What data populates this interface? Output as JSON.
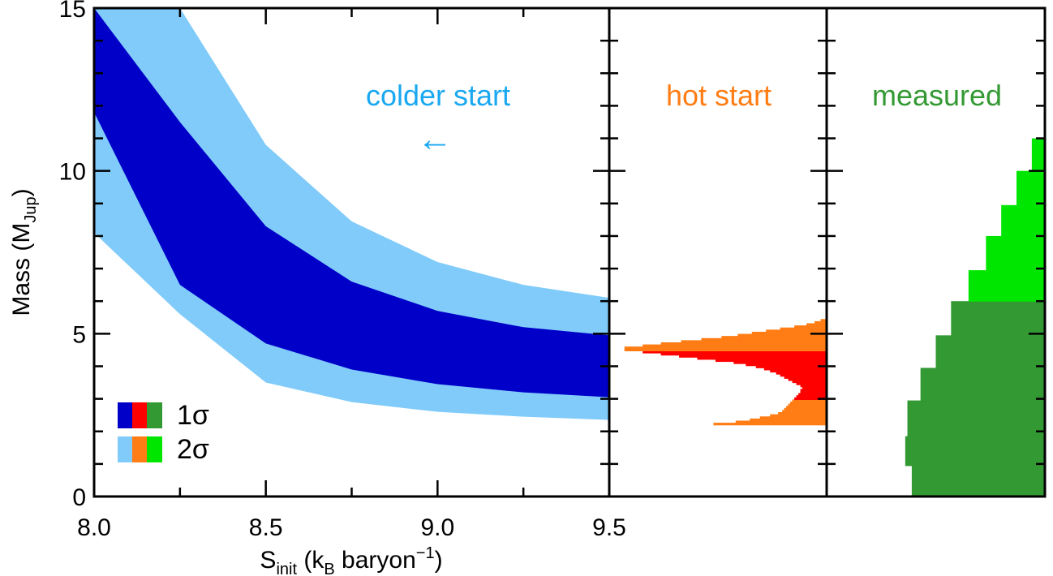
{
  "colors": {
    "s1_dark": "#0000c8",
    "s1_light": "#80cbfa",
    "hot_dark": "#ff0000",
    "hot_light": "#ff7d14",
    "meas_dark": "#339933",
    "meas_light": "#00e600",
    "annot_cold": "#1aa8f0",
    "annot_hot": "#ff7d14",
    "annot_meas": "#339933"
  },
  "chart_data": {
    "type": "area",
    "ylabel_main": "Mass (M",
    "ylabel_sub": "Jup",
    "ylabel_close": ")",
    "xlabel_main": "S",
    "xlabel_sub": "init",
    "xlabel_mid": " (k",
    "xlabel_sub2": "B",
    "xlabel_tail": " baryon",
    "xlabel_sup": "−1",
    "xlabel_close": ")",
    "ylim": [
      0,
      15
    ],
    "xlim": [
      8.0,
      9.5
    ],
    "yticks": [
      0,
      5,
      10,
      15
    ],
    "xticks": [
      {
        "value": 8.0,
        "label": "8.0"
      },
      {
        "value": 8.5,
        "label": "8.5"
      },
      {
        "value": 9.0,
        "label": "9.0"
      },
      {
        "value": 9.5,
        "label": "9.5"
      }
    ],
    "annotations": {
      "cold": "colder start",
      "hot": "hot start",
      "measured": "measured",
      "arrow": "←"
    },
    "legend": {
      "sigma1": "1σ",
      "sigma2": "2σ",
      "placement": "bottom-left"
    },
    "cold_start": {
      "x": [
        8.0,
        8.25,
        8.5,
        8.75,
        9.0,
        9.25,
        9.5
      ],
      "two_sigma_low": [
        8.1,
        5.6,
        3.5,
        2.9,
        2.6,
        2.45,
        2.35
      ],
      "one_sigma_low": [
        11.8,
        6.5,
        4.7,
        3.9,
        3.45,
        3.2,
        3.05
      ],
      "one_sigma_high": [
        15.0,
        11.5,
        8.3,
        6.6,
        5.7,
        5.2,
        4.95
      ],
      "two_sigma_high": [
        15.6,
        15.0,
        10.8,
        8.45,
        7.2,
        6.5,
        6.1
      ]
    },
    "hot_start": {
      "width_fraction": [
        0.56,
        0.45,
        0.38,
        0.33,
        0.28,
        0.24,
        0.22,
        0.21,
        0.2,
        0.19,
        0.18,
        0.17,
        0.16,
        0.15,
        0.14,
        0.13,
        0.13,
        0.12,
        0.13,
        0.15,
        0.17,
        0.19,
        0.21,
        0.23,
        0.25,
        0.28,
        0.31,
        0.35,
        0.4,
        0.46,
        0.55,
        0.64,
        0.73,
        0.82,
        0.91,
        1.0,
        1.0,
        0.91,
        0.82,
        0.72,
        0.62,
        0.52,
        0.44,
        0.37,
        0.3,
        0.23,
        0.16,
        0.1,
        0.06,
        0.03
      ],
      "mass_grid_start": 2.2,
      "mass_grid_step": 0.065,
      "one_sigma_range": [
        2.95,
        4.45
      ],
      "two_sigma_range": [
        2.2,
        5.45
      ]
    },
    "measured": {
      "one_sigma_steps": [
        {
          "low": 0.0,
          "high": 0.95,
          "width": 0.61
        },
        {
          "low": 0.95,
          "high": 1.85,
          "width": 0.64
        },
        {
          "low": 1.85,
          "high": 2.95,
          "width": 0.63
        },
        {
          "low": 2.95,
          "high": 3.95,
          "width": 0.57
        },
        {
          "low": 3.95,
          "high": 4.95,
          "width": 0.5
        },
        {
          "low": 4.95,
          "high": 6.0,
          "width": 0.43
        }
      ],
      "two_sigma_steps": [
        {
          "low": 6.0,
          "high": 6.95,
          "width": 0.35
        },
        {
          "low": 6.95,
          "high": 8.0,
          "width": 0.27
        },
        {
          "low": 8.0,
          "high": 8.95,
          "width": 0.2
        },
        {
          "low": 8.95,
          "high": 10.0,
          "width": 0.13
        },
        {
          "low": 10.0,
          "high": 11.0,
          "width": 0.06
        }
      ]
    }
  }
}
